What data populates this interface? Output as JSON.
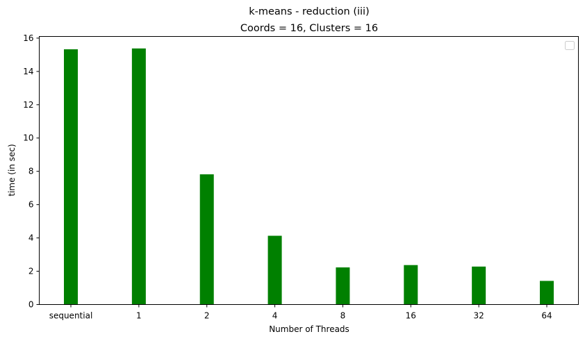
{
  "chart_data": {
    "type": "bar",
    "title": "k-means - reduction  (iii)",
    "subtitle": "Coords = 16, Clusters = 16",
    "xlabel": "Number of Threads",
    "ylabel": "time (in sec)",
    "categories": [
      "sequential",
      "1",
      "2",
      "4",
      "8",
      "16",
      "32",
      "64"
    ],
    "values": [
      15.33,
      15.38,
      7.82,
      4.13,
      2.23,
      2.37,
      2.28,
      1.42
    ],
    "ylim": [
      0,
      16.1
    ],
    "yticks": [
      0,
      2,
      4,
      6,
      8,
      10,
      12,
      14,
      16
    ],
    "bar_color": "#008000",
    "grid": false,
    "legend": "top-right (empty)"
  }
}
